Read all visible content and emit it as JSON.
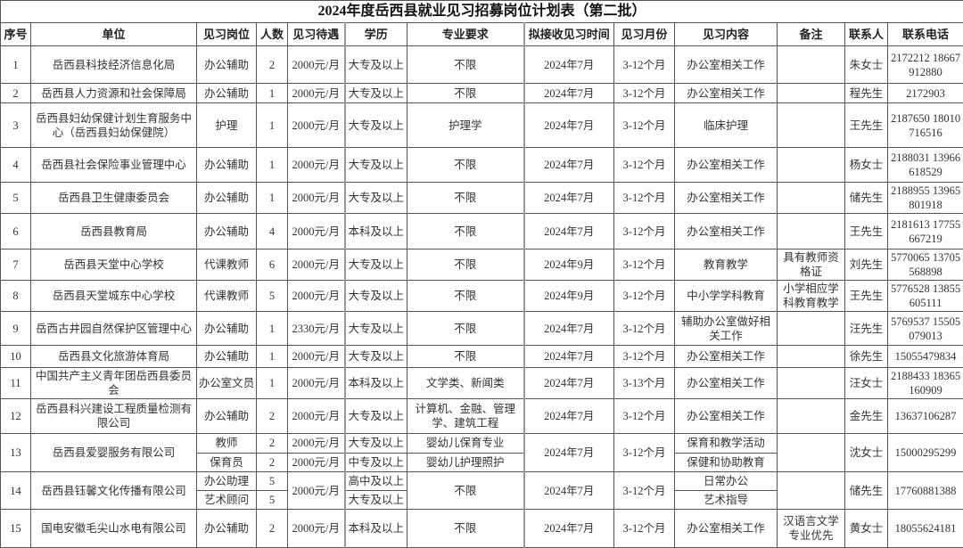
{
  "title": "2024年度岳西县就业见习招募岗位计划表（第二批）",
  "headers": [
    "序号",
    "单位",
    "见习岗位",
    "人数",
    "见习待遇",
    "学历",
    "专业要求",
    "拟接收见习时间",
    "见习月份",
    "见习内容",
    "备注",
    "联系人",
    "联系电话"
  ],
  "rows": [
    {
      "no": "1",
      "unit": "岳西县科技经济信息化局",
      "pos": "办公辅助",
      "cnt": "2",
      "pay": "2000元/月",
      "edu": "大专及以上",
      "major": "不限",
      "time": "2024年7月",
      "months": "3-12个月",
      "content": "办公室相关工作",
      "remark": "",
      "contact": "朱女士",
      "phone": "2172212 18667912880"
    },
    {
      "no": "2",
      "unit": "岳西县人力资源和社会保障局",
      "pos": "办公辅助",
      "cnt": "1",
      "pay": "2000元/月",
      "edu": "大专及以上",
      "major": "不限",
      "time": "2024年7月",
      "months": "3-12个月",
      "content": "办公室相关工作",
      "remark": "",
      "contact": "程先生",
      "phone": "2172903"
    },
    {
      "no": "3",
      "unit": "岳西县妇幼保健计划生育服务中心（岳西县妇幼保健院）",
      "pos": "护理",
      "cnt": "1",
      "pay": "2000元/月",
      "edu": "大专及以上",
      "major": "护理学",
      "time": "2024年7月",
      "months": "3-12个月",
      "content": "临床护理",
      "remark": "",
      "contact": "王先生",
      "phone": "2187650 18010716516"
    },
    {
      "no": "4",
      "unit": "岳西县社会保险事业管理中心",
      "pos": "办公辅助",
      "cnt": "1",
      "pay": "2000元/月",
      "edu": "大专及以上",
      "major": "不限",
      "time": "2024年7月",
      "months": "3-12个月",
      "content": "办公室相关工作",
      "remark": "",
      "contact": "杨女士",
      "phone": "2188031 13966618529"
    },
    {
      "no": "5",
      "unit": "岳西县卫生健康委员会",
      "pos": "办公辅助",
      "cnt": "1",
      "pay": "2000元/月",
      "edu": "大专及以上",
      "major": "不限",
      "time": "2024年7月",
      "months": "3-12个月",
      "content": "办公室相关工作",
      "remark": "",
      "contact": "储先生",
      "phone": "2188955 13965801918"
    },
    {
      "no": "6",
      "unit": "岳西县教育局",
      "pos": "办公辅助",
      "cnt": "4",
      "pay": "2000元/月",
      "edu": "本科及以上",
      "major": "不限",
      "time": "2024年7月",
      "months": "3-12个月",
      "content": "办公室相关工作",
      "remark": "",
      "contact": "王先生",
      "phone": "2181613 17755667219"
    },
    {
      "no": "7",
      "unit": "岳西县天堂中心学校",
      "pos": "代课教师",
      "cnt": "6",
      "pay": "2000元/月",
      "edu": "大专及以上",
      "major": "不限",
      "time": "2024年9月",
      "months": "3-12个月",
      "content": "教育教学",
      "remark": "具有教师资格证",
      "contact": "刘先生",
      "phone": "5770065 13705568898"
    },
    {
      "no": "8",
      "unit": "岳西县天堂城东中心学校",
      "pos": "代课教师",
      "cnt": "5",
      "pay": "2000元/月",
      "edu": "大专及以上",
      "major": "不限",
      "time": "2024年9月",
      "months": "3-12个月",
      "content": "中小学学科教育",
      "remark": "小学相应学科教育教学",
      "contact": "王先生",
      "phone": "5776528 13855605111"
    },
    {
      "no": "9",
      "unit": "岳西古井园自然保护区管理中心",
      "pos": "办公辅助",
      "cnt": "1",
      "pay": "2330元/月",
      "edu": "大专及以上",
      "major": "不限",
      "time": "2024年7月",
      "months": "3-12个月",
      "content": "辅助办公室做好相关工作",
      "remark": "",
      "contact": "汪先生",
      "phone": "5769537 15505079013"
    },
    {
      "no": "10",
      "unit": "岳西县文化旅游体育局",
      "pos": "办公辅助",
      "cnt": "1",
      "pay": "2000元/月",
      "edu": "大专及以上",
      "major": "不限",
      "time": "2024年7月",
      "months": "3-12个月",
      "content": "办公室相关工作",
      "remark": "",
      "contact": "徐先生",
      "phone": "15055479834"
    },
    {
      "no": "11",
      "unit": "中国共产主义青年团岳西县委员会",
      "pos": "办公室文员",
      "cnt": "1",
      "pay": "2000元/月",
      "edu": "本科及以上",
      "major": "文学类、新闻类",
      "time": "2024年7月",
      "months": "3-13个月",
      "content": "办公室相关工作",
      "remark": "",
      "contact": "汪女士",
      "phone": "2188433 18365160909"
    },
    {
      "no": "12",
      "unit": "岳西县科兴建设工程质量检测有限公司",
      "pos": "办公辅助",
      "cnt": "2",
      "pay": "2000元/月",
      "edu": "大专及以上",
      "major": "计算机、金融、管理学、建筑工程",
      "time": "2024年7月",
      "months": "3-12个月",
      "content": "办公室相关工作",
      "remark": "",
      "contact": "金先生",
      "phone": "13637106287"
    },
    {
      "no": "13",
      "unit": "岳西县爱婴服务有限公司",
      "pos": [
        "教师",
        "保育员"
      ],
      "cnt": [
        "2",
        "2"
      ],
      "pay": [
        "2000元/月",
        "2000元/月"
      ],
      "edu": [
        "大专及以上",
        "中专及以上"
      ],
      "major": [
        "婴幼儿保育专业",
        "婴幼儿护理照护"
      ],
      "time": "2024年7月",
      "months": "3-12个月",
      "content": [
        "保育和教学活动",
        "保健和协助教育"
      ],
      "remark": "",
      "contact": "沈女士",
      "phone": "15000295299"
    },
    {
      "no": "14",
      "unit": "岳西县钰馨文化传播有限公司",
      "pos": [
        "办公助理",
        "艺术顾问"
      ],
      "cnt": [
        "5",
        "5"
      ],
      "pay": "2000元/月",
      "edu": [
        "高中及以上",
        "大专及以上"
      ],
      "major": "不限",
      "time": "2024年7月",
      "months": "3-12个月",
      "content": [
        "日常办公",
        "艺术指导"
      ],
      "remark": "",
      "contact": "储先生",
      "phone": "17760881388"
    },
    {
      "no": "15",
      "unit": "国电安徽毛尖山水电有限公司",
      "pos": "办公辅助",
      "cnt": "2",
      "pay": "2000元/月",
      "edu": "本科及以上",
      "major": "不限",
      "time": "2024年7月",
      "months": "3-12个月",
      "content": "办公室相关工作",
      "remark": "汉语言文学专业优先",
      "contact": "黄女士",
      "phone": "18055624181"
    }
  ]
}
